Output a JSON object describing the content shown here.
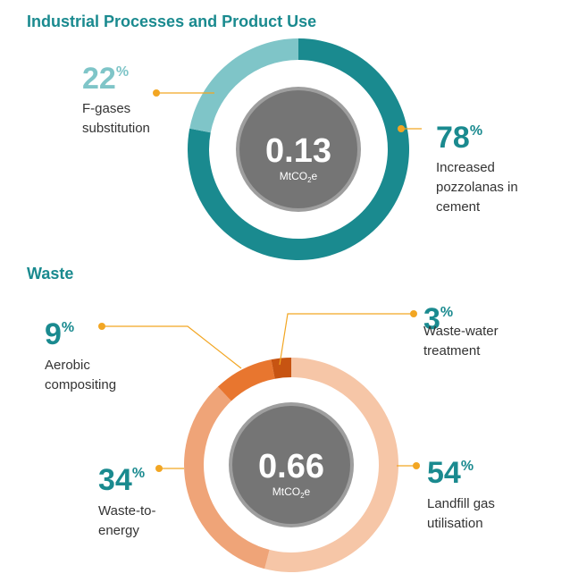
{
  "chart_data": [
    {
      "type": "pie",
      "title": "Industrial Processes and Product Use",
      "center_value": "0.13",
      "center_unit": "MtCO",
      "center_unit_sub": "2",
      "center_unit_suffix": "e",
      "slices": [
        {
          "label": "Increased pozzolanas in cement",
          "label_lines": [
            "Increased",
            "pozzolanas in",
            "cement"
          ],
          "value": 78,
          "percent_text": "78",
          "color": "#1a8a8f",
          "pct_color": "#1a8a8f"
        },
        {
          "label": "F-gases substitution",
          "label_lines": [
            "F-gases",
            "substitution"
          ],
          "value": 22,
          "percent_text": "22",
          "color": "#7fc5c8",
          "pct_color": "#7fc5c8"
        }
      ]
    },
    {
      "type": "pie",
      "title": "Waste",
      "center_value": "0.66",
      "center_unit": "MtCO",
      "center_unit_sub": "2",
      "center_unit_suffix": "e",
      "slices": [
        {
          "label": "Landfill gas utilisation",
          "label_lines": [
            "Landfill gas",
            "utilisation"
          ],
          "value": 54,
          "percent_text": "54",
          "color": "#f6c6a7",
          "pct_color": "#1a8a8f"
        },
        {
          "label": "Waste-to-energy",
          "label_lines": [
            "Waste-to-",
            "energy"
          ],
          "value": 34,
          "percent_text": "34",
          "color": "#efa478",
          "pct_color": "#1a8a8f"
        },
        {
          "label": "Aerobic compositing",
          "label_lines": [
            "Aerobic",
            "compositing"
          ],
          "value": 9,
          "percent_text": "9",
          "color": "#e8762f",
          "pct_color": "#1a8a8f"
        },
        {
          "label": "Waste-water treatment",
          "label_lines": [
            "Waste-water",
            "treatment"
          ],
          "value": 3,
          "percent_text": "3",
          "color": "#c75412",
          "pct_color": "#1a8a8f"
        }
      ]
    }
  ],
  "colors": {
    "leader": "#f2a623",
    "center_fill": "#757575",
    "center_ring": "#9e9e9e"
  }
}
